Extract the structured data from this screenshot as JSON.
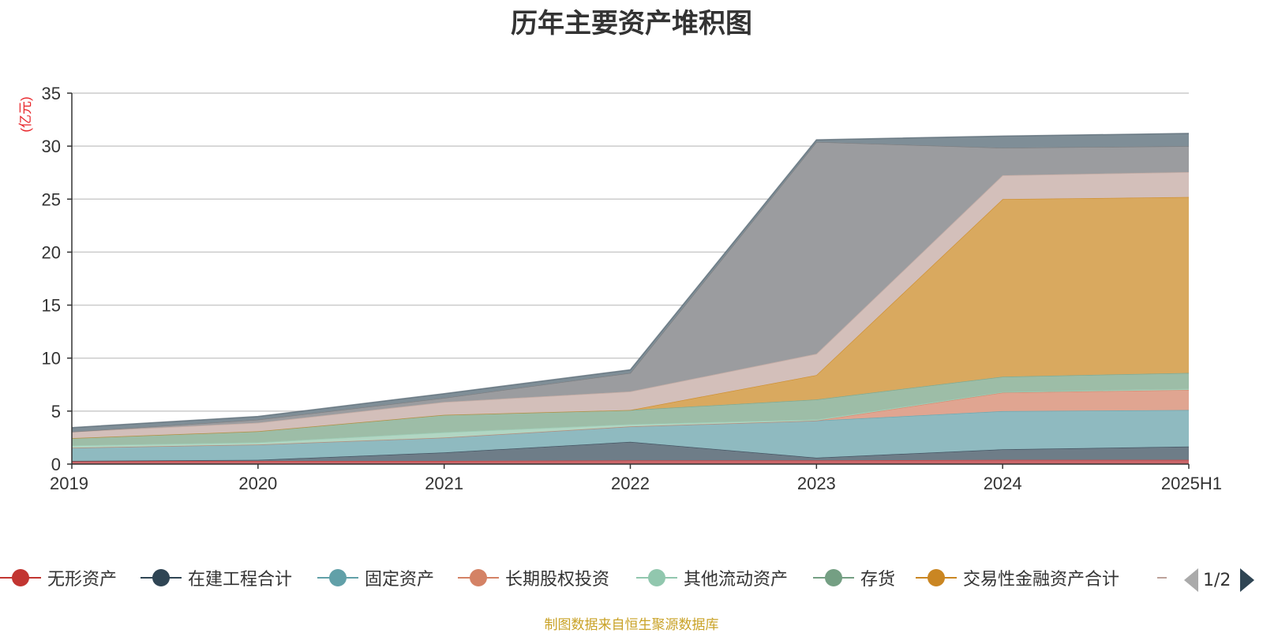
{
  "chart_data": {
    "type": "area",
    "title": "历年主要资产堆积图",
    "ylabel": "(亿元)",
    "xlabel": "",
    "x": [
      "2019",
      "2020",
      "2021",
      "2022",
      "2023",
      "2024",
      "2025H1"
    ],
    "ylim": [
      0,
      35
    ],
    "yticks": [
      0,
      5,
      10,
      15,
      20,
      25,
      30,
      35
    ],
    "grid": true,
    "stacked": true,
    "legend_position": "bottom",
    "series": [
      {
        "name": "无形资产",
        "color": "#c23531",
        "fill": "#c9666a",
        "values": [
          0.3,
          0.3,
          0.3,
          0.35,
          0.35,
          0.4,
          0.4
        ]
      },
      {
        "name": "在建工程合计",
        "color": "#2f4554",
        "fill": "#6e7d88",
        "values": [
          0.0,
          0.1,
          0.8,
          1.75,
          0.25,
          1.0,
          1.25
        ]
      },
      {
        "name": "固定资产",
        "color": "#61a0a8",
        "fill": "#8fbac0",
        "values": [
          1.25,
          1.45,
          1.4,
          1.45,
          3.5,
          3.6,
          3.45
        ]
      },
      {
        "name": "长期股权投资",
        "color": "#d48265",
        "fill": "#e0a591",
        "values": [
          0.0,
          0.0,
          0.0,
          0.0,
          0.0,
          1.75,
          1.9
        ]
      },
      {
        "name": "其他流动资产",
        "color": "#91c7ae",
        "fill": "#b1d6c3",
        "values": [
          0.2,
          0.2,
          0.5,
          0.2,
          0.1,
          0.05,
          0.1
        ]
      },
      {
        "name": "存货",
        "color": "#749f83",
        "fill": "#9dbda7",
        "values": [
          0.7,
          1.05,
          1.65,
          1.35,
          1.9,
          1.45,
          1.5
        ]
      },
      {
        "name": "交易性金融资产合计",
        "color": "#ca8622",
        "fill": "#d9a95f",
        "values": [
          0.0,
          0.0,
          0.0,
          0.0,
          2.3,
          16.75,
          16.6
        ]
      },
      {
        "name": "",
        "color": "#bda29a",
        "fill": "#d3bfba",
        "values": [
          0.6,
          0.8,
          1.2,
          1.75,
          2.0,
          2.25,
          2.35
        ]
      },
      {
        "name": "",
        "color": "#6e7074",
        "fill": "#9b9c9f",
        "values": [
          0.0,
          0.3,
          0.4,
          1.75,
          20.0,
          2.6,
          2.45
        ]
      },
      {
        "name": "",
        "color": "#546570",
        "fill": "#7f8e97",
        "values": [
          0.4,
          0.3,
          0.4,
          0.3,
          0.2,
          1.1,
          1.2
        ]
      }
    ]
  },
  "legend": {
    "page": "1/2"
  },
  "footer": {
    "source": "制图数据来自恒生聚源数据库"
  }
}
